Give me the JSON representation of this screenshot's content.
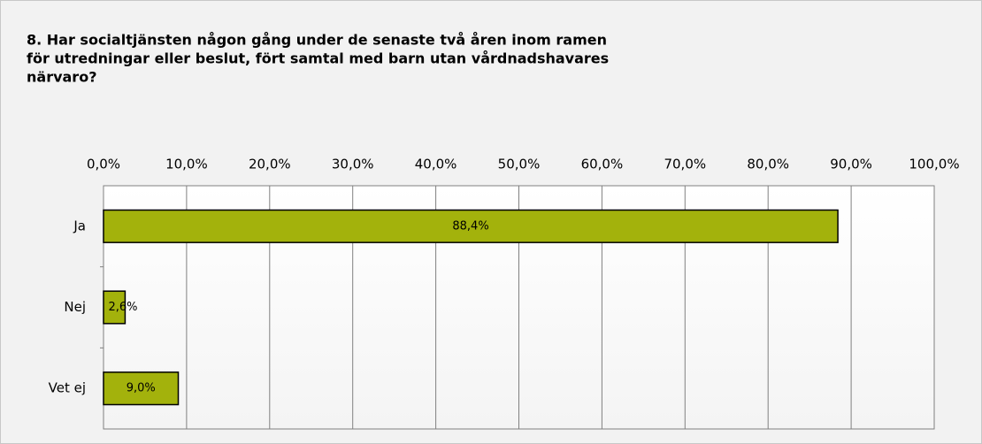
{
  "chart_data": {
    "type": "bar",
    "orientation": "horizontal",
    "title": [
      "8. Har socialtjänsten någon gång under de senaste två åren inom ramen",
      "för utredningar eller beslut, fört samtal med barn utan vårdnadshavares",
      "närvaro?"
    ],
    "categories": [
      "Ja",
      "Nej",
      "Vet ej"
    ],
    "values": [
      88.4,
      2.6,
      9.0
    ],
    "value_labels": [
      "88,4%",
      "2,6%",
      "9,0%"
    ],
    "color": "#a3b20c",
    "xlim": [
      0,
      100
    ],
    "xticks": [
      {
        "value": 0,
        "label": "0,0%"
      },
      {
        "value": 10,
        "label": "10,0%"
      },
      {
        "value": 20,
        "label": "20,0%"
      },
      {
        "value": 30,
        "label": "30,0%"
      },
      {
        "value": 40,
        "label": "40,0%"
      },
      {
        "value": 50,
        "label": "50,0%"
      },
      {
        "value": 60,
        "label": "60,0%"
      },
      {
        "value": 70,
        "label": "70,0%"
      },
      {
        "value": 80,
        "label": "80,0%"
      },
      {
        "value": 90,
        "label": "90,0%"
      },
      {
        "value": 100,
        "label": "100,0%"
      }
    ],
    "grid": true
  }
}
